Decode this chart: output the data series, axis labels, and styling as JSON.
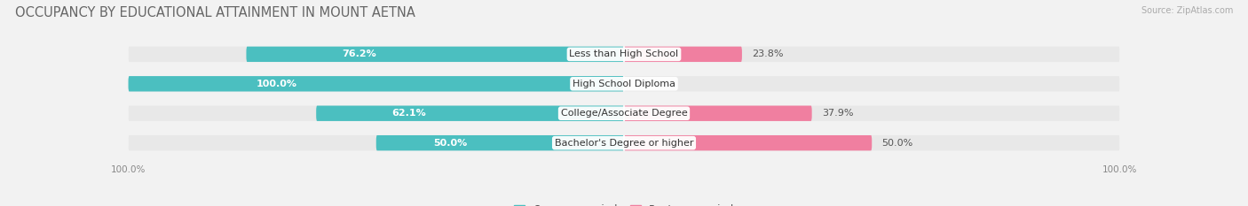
{
  "title": "OCCUPANCY BY EDUCATIONAL ATTAINMENT IN MOUNT AETNA",
  "source": "Source: ZipAtlas.com",
  "categories": [
    "Less than High School",
    "High School Diploma",
    "College/Associate Degree",
    "Bachelor's Degree or higher"
  ],
  "owner_values": [
    76.2,
    100.0,
    62.1,
    50.0
  ],
  "renter_values": [
    23.8,
    0.0,
    37.9,
    50.0
  ],
  "owner_color": "#4BBFC0",
  "renter_color": "#F07FA0",
  "bg_color": "#f2f2f2",
  "bar_bg_color": "#e8e8e8",
  "row_bg_color": "#ffffff",
  "title_fontsize": 10.5,
  "label_fontsize": 8.0,
  "value_fontsize": 8.0,
  "axis_label_fontsize": 7.5,
  "legend_fontsize": 8.5,
  "bar_height": 0.52,
  "xlim_left": -107,
  "xlim_right": 107
}
